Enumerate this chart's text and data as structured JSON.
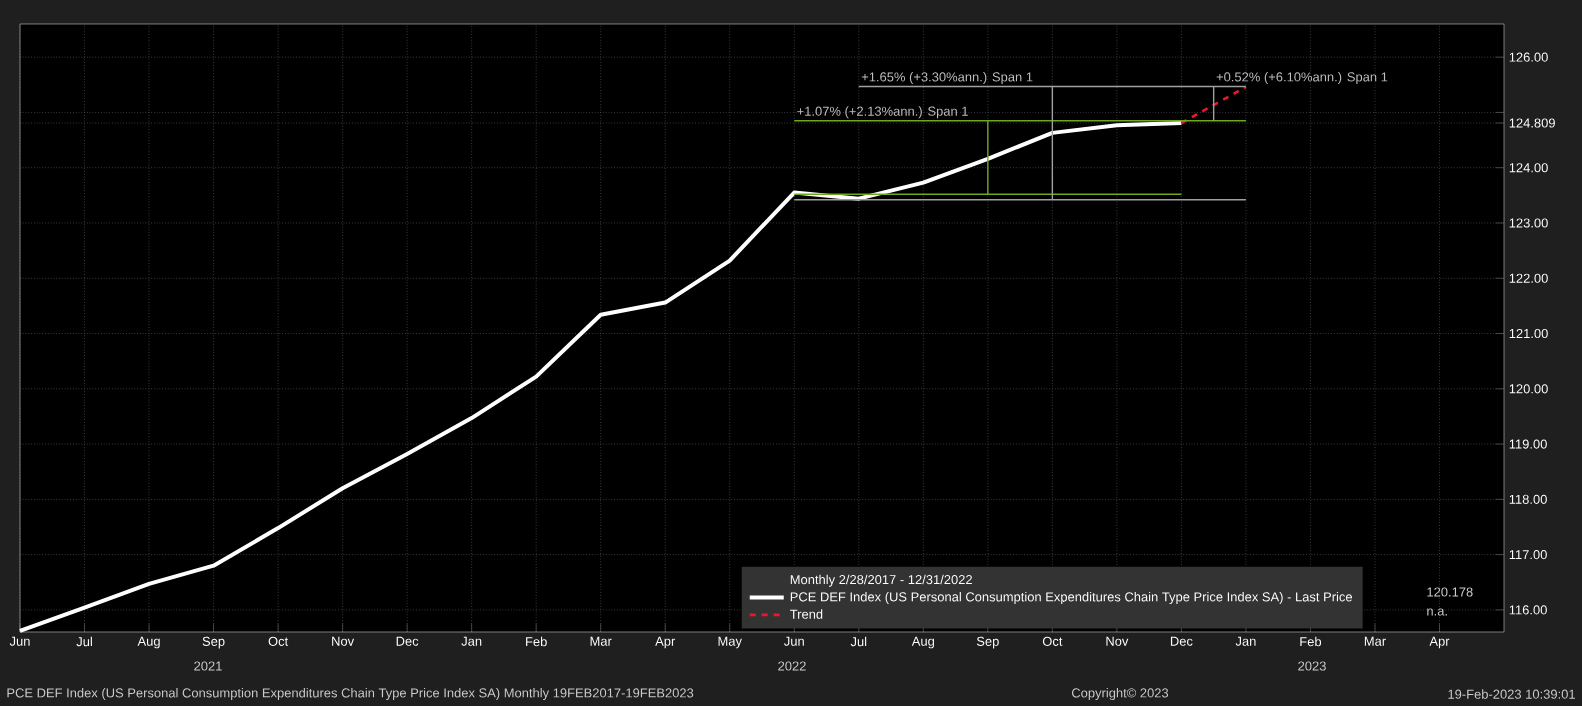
{
  "chart_data": {
    "type": "line",
    "legend_title": "Monthly 2/28/2017 - 12/31/2022",
    "xlim": [
      "2021-06",
      "2023-05"
    ],
    "ylim": [
      115.6,
      126.6
    ],
    "xticks": [
      {
        "value": "2021-06",
        "label": "Jun"
      },
      {
        "value": "2021-07",
        "label": "Jul"
      },
      {
        "value": "2021-08",
        "label": "Aug"
      },
      {
        "value": "2021-09",
        "label": "Sep"
      },
      {
        "value": "2021-10",
        "label": "Oct"
      },
      {
        "value": "2021-11",
        "label": "Nov"
      },
      {
        "value": "2021-12",
        "label": "Dec"
      },
      {
        "value": "2022-01",
        "label": "Jan"
      },
      {
        "value": "2022-02",
        "label": "Feb"
      },
      {
        "value": "2022-03",
        "label": "Mar"
      },
      {
        "value": "2022-04",
        "label": "Apr"
      },
      {
        "value": "2022-05",
        "label": "May"
      },
      {
        "value": "2022-06",
        "label": "Jun"
      },
      {
        "value": "2022-07",
        "label": "Jul"
      },
      {
        "value": "2022-08",
        "label": "Aug"
      },
      {
        "value": "2022-09",
        "label": "Sep"
      },
      {
        "value": "2022-10",
        "label": "Oct"
      },
      {
        "value": "2022-11",
        "label": "Nov"
      },
      {
        "value": "2022-12",
        "label": "Dec"
      },
      {
        "value": "2023-01",
        "label": "Jan"
      },
      {
        "value": "2023-02",
        "label": "Feb"
      },
      {
        "value": "2023-03",
        "label": "Mar"
      },
      {
        "value": "2023-04",
        "label": "Apr"
      }
    ],
    "yticks": [
      {
        "value": 116,
        "label": "116.00"
      },
      {
        "value": 117,
        "label": "117.00"
      },
      {
        "value": 118,
        "label": "118.00"
      },
      {
        "value": 119,
        "label": "119.00"
      },
      {
        "value": 120,
        "label": "120.00"
      },
      {
        "value": 121,
        "label": "121.00"
      },
      {
        "value": 122,
        "label": "122.00"
      },
      {
        "value": 123,
        "label": "123.00"
      },
      {
        "value": 124,
        "label": "124.00"
      },
      {
        "value": 124.809,
        "label": "124.809"
      },
      {
        "value": 125,
        "label": null
      },
      {
        "value": 126,
        "label": "126.00"
      }
    ],
    "grid": true,
    "legend": "bottom right",
    "series": [
      {
        "name": "PCE DEF Index (US Personal Consumption Expenditures Chain Type Price Index SA) - Last Price",
        "color": "#ffffff",
        "x": [
          "2021-06",
          "2021-07",
          "2021-08",
          "2021-09",
          "2021-10",
          "2021-11",
          "2021-12",
          "2022-01",
          "2022-02",
          "2022-03",
          "2022-04",
          "2022-05",
          "2022-06",
          "2022-07",
          "2022-08",
          "2022-09",
          "2022-10",
          "2022-11",
          "2022-12"
        ],
        "values": [
          115.62,
          116.04,
          116.47,
          116.8,
          117.48,
          118.2,
          118.82,
          119.47,
          120.22,
          121.34,
          121.56,
          122.32,
          123.55,
          123.44,
          123.73,
          124.16,
          124.63,
          124.77,
          124.809
        ]
      },
      {
        "name": "Trend",
        "color": "#e8192c",
        "line_style": "dashed",
        "x": [
          "2022-12",
          "2023-01"
        ],
        "values": [
          124.809,
          125.46
        ]
      },
      {
        "color": "#6fa81e",
        "x": [
          "2022-06",
          "2022-12"
        ],
        "values": [
          123.52,
          123.52
        ]
      },
      {
        "color": "#6fa81e",
        "x": [
          "2022-06",
          "2023-01"
        ],
        "values": [
          124.85,
          124.85
        ]
      },
      {
        "color": "#6fa81e",
        "x": [
          "2022-09",
          "2022-09"
        ],
        "values": [
          123.52,
          124.85
        ]
      },
      {
        "color": "#a0a0a0",
        "x": [
          "2022-06",
          "2023-01"
        ],
        "values": [
          123.42,
          123.42
        ]
      },
      {
        "color": "#a0a0a0",
        "x": [
          "2022-07",
          "2023-01"
        ],
        "values": [
          125.47,
          125.47
        ]
      },
      {
        "color": "#a0a0a0",
        "x": [
          "2022-10",
          "2022-10"
        ],
        "values": [
          123.42,
          125.47
        ]
      },
      {
        "color": "#a0a0a0",
        "x": [
          "2022-12-16",
          "2022-12-16"
        ],
        "values": [
          124.85,
          125.47
        ]
      }
    ],
    "annotations": [
      {
        "text": "+1.07% (+2.13%ann.) Span 1",
        "x": "2022-06",
        "y": 124.85
      },
      {
        "text": "+1.65% (+3.30%ann.) Span 1",
        "x": "2022-07",
        "y": 125.47
      },
      {
        "text": "+0.52% (+6.10%ann.) Span 1",
        "x": "2022-12-16",
        "y": 125.47
      },
      "2021",
      "2022",
      "2023",
      "120.178",
      "n.a.",
      "PCE DEF Index (US Personal Consumption Expenditures Chain Type Price Index SA)  Monthly 19FEB2017-19FEB2023",
      "Copyright© 2023",
      "19-Feb-2023 10:39:01"
    ]
  }
}
